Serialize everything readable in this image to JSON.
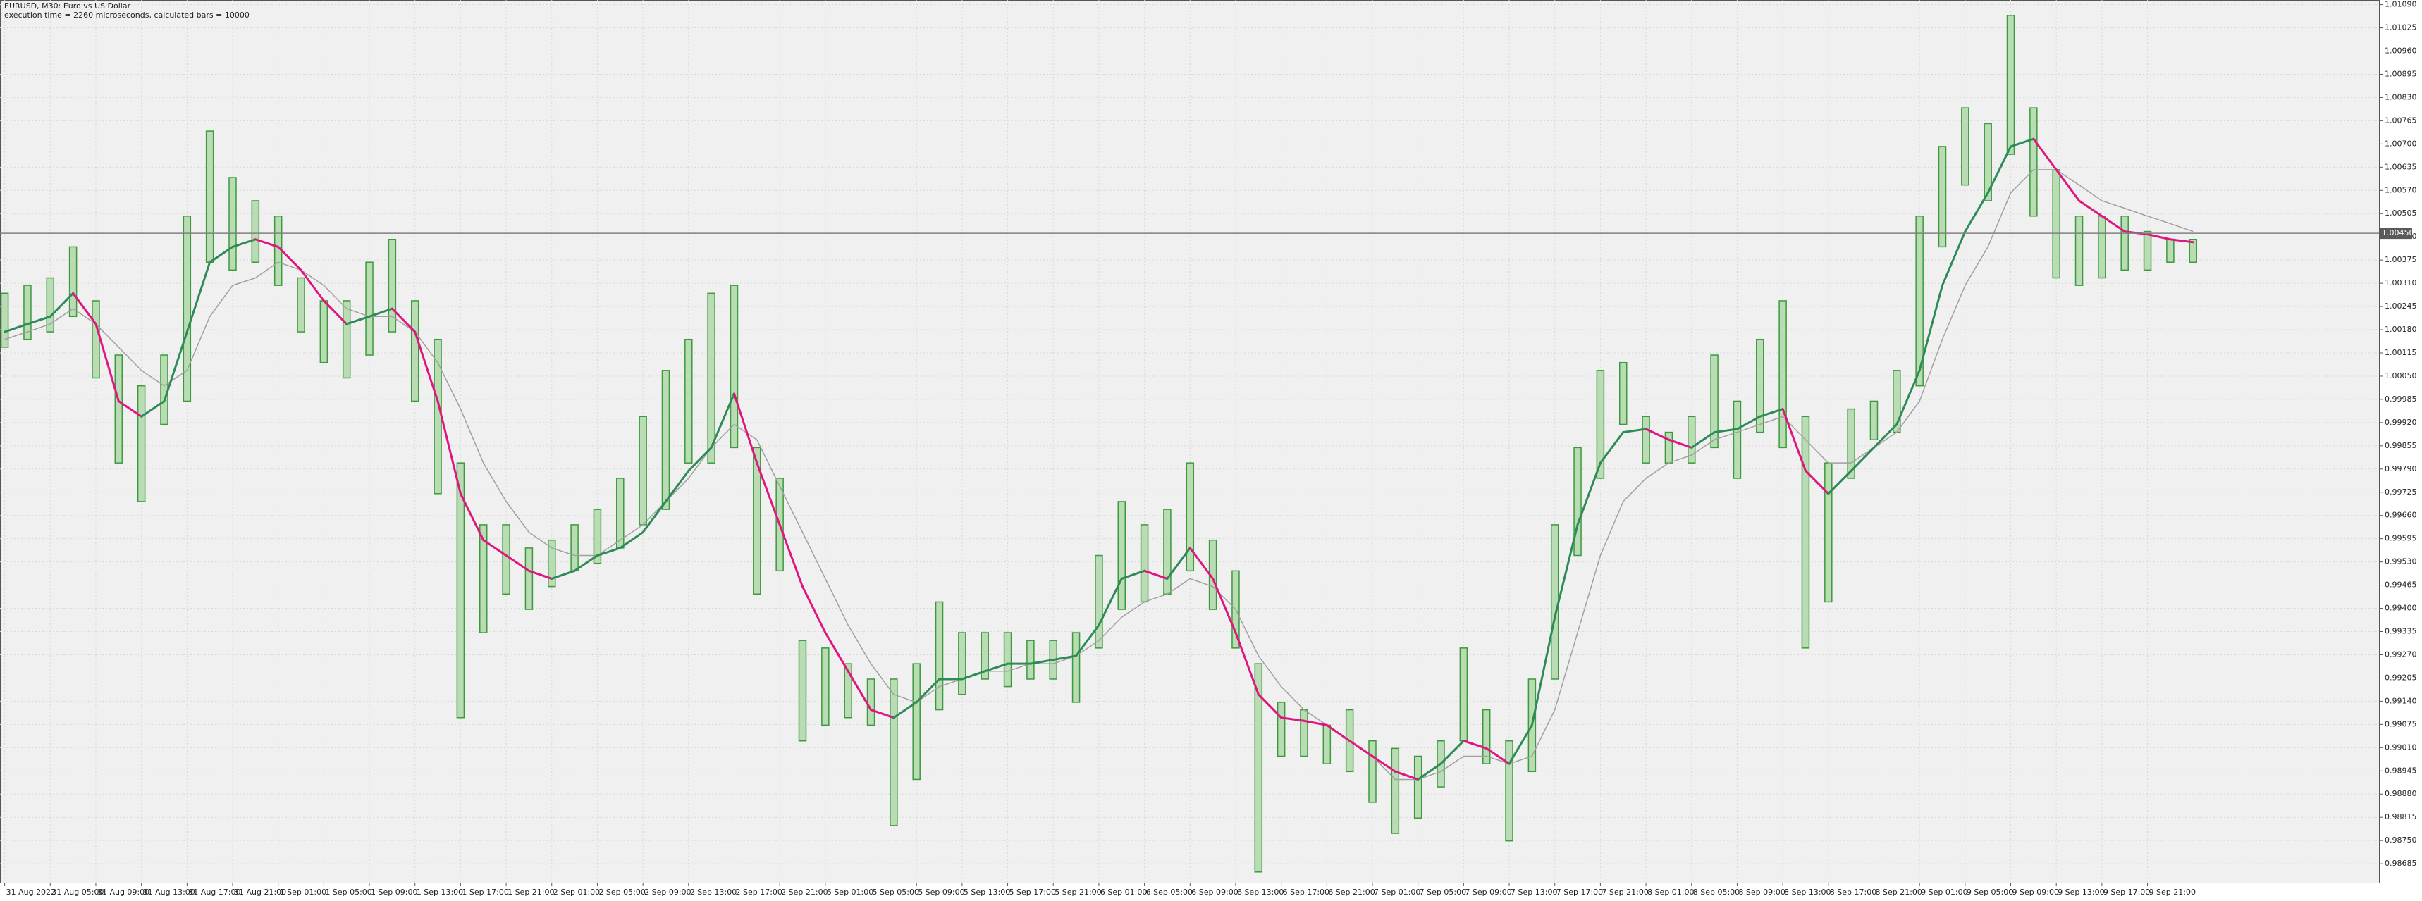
{
  "chart_data": {
    "type": "ohlc",
    "title": "EURUSD, M30:  Euro vs US Dollar",
    "subtitle": "execution time = 2260 microseconds, calculated bars = 10000",
    "categories": [
      "31 Aug 2022",
      null,
      "31 Aug 05:00",
      null,
      "31 Aug 09:00",
      null,
      "31 Aug 13:00",
      null,
      "31 Aug 17:00",
      null,
      "31 Aug 21:00",
      null,
      "1 Sep 01:00",
      null,
      "1 Sep 05:00",
      null,
      "1 Sep 09:00",
      null,
      "1 Sep 13:00",
      null,
      "1 Sep 17:00",
      null,
      "1 Sep 21:00",
      null,
      "2 Sep 01:00",
      null,
      "2 Sep 05:00",
      null,
      "2 Sep 09:00",
      null,
      "2 Sep 13:00",
      null,
      "2 Sep 17:00",
      null,
      "2 Sep 21:00",
      null,
      "5 Sep 01:00",
      null,
      "5 Sep 05:00",
      null,
      "5 Sep 09:00",
      null,
      "5 Sep 13:00",
      null,
      "5 Sep 17:00",
      null,
      "5 Sep 21:00",
      null,
      "6 Sep 01:00",
      null,
      "6 Sep 05:00",
      null,
      "6 Sep 09:00",
      null,
      "6 Sep 13:00",
      null,
      "6 Sep 17:00",
      null,
      "6 Sep 21:00",
      null,
      "7 Sep 01:00",
      null,
      "7 Sep 05:00",
      null,
      "7 Sep 09:00",
      null,
      "7 Sep 13:00",
      null,
      "7 Sep 17:00",
      null,
      "7 Sep 21:00",
      null,
      "8 Sep 01:00",
      null,
      "8 Sep 05:00",
      null,
      "8 Sep 09:00",
      null,
      "8 Sep 13:00",
      null,
      "8 Sep 17:00",
      null,
      "8 Sep 21:00",
      null,
      "9 Sep 01:00",
      null,
      "9 Sep 05:00",
      null,
      "9 Sep 09:00",
      null,
      "9 Sep 13:00",
      null,
      "9 Sep 17:00",
      null,
      "9 Sep 21:00",
      null,
      null
    ],
    "high": [
      1.00282,
      1.00304,
      1.00325,
      1.00412,
      1.00261,
      1.00109,
      1.00023,
      1.00109,
      1.00498,
      1.00736,
      1.00606,
      1.00541,
      1.00498,
      1.00325,
      1.00261,
      1.00261,
      1.00369,
      1.00433,
      1.00261,
      1.00153,
      0.99807,
      0.99634,
      0.99634,
      0.99569,
      0.99591,
      0.99634,
      0.99677,
      0.99764,
      0.99937,
      1.00066,
      1.00153,
      1.00282,
      1.00304,
      0.9985,
      0.99764,
      0.9931,
      0.99289,
      0.99245,
      0.99202,
      0.99202,
      0.99245,
      0.99418,
      0.99332,
      0.99332,
      0.99332,
      0.9931,
      0.9931,
      0.99332,
      0.99548,
      0.99699,
      0.99634,
      0.99677,
      0.99807,
      0.99591,
      0.99505,
      0.99245,
      0.99137,
      0.99116,
      0.99073,
      0.99116,
      0.99029,
      0.99008,
      0.98986,
      0.99029,
      0.99289,
      0.99116,
      0.99029,
      0.99202,
      0.99634,
      0.9985,
      1.00066,
      1.00088,
      0.99937,
      0.99893,
      0.99937,
      1.00109,
      0.9998,
      1.00153,
      1.00261,
      0.99937,
      0.99807,
      0.99958,
      0.9998,
      1.00066,
      1.00498,
      1.00693,
      1.00801,
      1.00757,
      1.0106,
      1.00801,
      1.00628,
      1.00498,
      1.00498,
      1.00498,
      1.00455,
      1.00433,
      1.00433
    ],
    "low": [
      1.00131,
      1.00153,
      1.00174,
      1.00217,
      1.00045,
      0.99807,
      0.99699,
      0.99915,
      0.9998,
      1.00369,
      1.00347,
      1.00369,
      1.00304,
      1.00174,
      1.00088,
      1.00045,
      1.00109,
      1.00174,
      0.9998,
      0.99721,
      0.99094,
      0.99332,
      0.9944,
      0.99397,
      0.99461,
      0.99505,
      0.99526,
      0.99569,
      0.99634,
      0.99677,
      0.99807,
      0.99807,
      0.9985,
      0.9944,
      0.99505,
      0.99029,
      0.99073,
      0.99094,
      0.99073,
      0.98792,
      0.98921,
      0.99116,
      0.99159,
      0.99202,
      0.99181,
      0.99202,
      0.99202,
      0.99137,
      0.99289,
      0.99397,
      0.99418,
      0.9944,
      0.99505,
      0.99397,
      0.99289,
      0.98662,
      0.98986,
      0.98986,
      0.98965,
      0.98943,
      0.98857,
      0.9877,
      0.98813,
      0.989,
      0.99029,
      0.98965,
      0.98749,
      0.98943,
      0.99202,
      0.99548,
      0.99764,
      0.99915,
      0.99807,
      0.99807,
      0.99807,
      0.9985,
      0.99764,
      0.99893,
      0.9985,
      0.99289,
      0.99418,
      0.99764,
      0.99872,
      0.99893,
      1.00023,
      1.00412,
      1.00585,
      1.00541,
      1.00671,
      1.00498,
      1.00325,
      1.00304,
      1.00325,
      1.00347,
      1.00347,
      1.00369,
      1.00369
    ],
    "bar_color": "#3c9a3c",
    "fast_line": {
      "color_up": "#2e8b57",
      "color_down": "#e0157f",
      "values": [
        1.00174,
        1.00196,
        1.00217,
        1.00282,
        1.00196,
        0.9998,
        0.99937,
        0.9998,
        1.00174,
        1.00369,
        1.00412,
        1.00433,
        1.00412,
        1.00347,
        1.00261,
        1.00196,
        1.00217,
        1.00239,
        1.00174,
        0.9998,
        0.99721,
        0.99591,
        0.99548,
        0.99505,
        0.99483,
        0.99505,
        0.99548,
        0.99569,
        0.99613,
        0.99699,
        0.99785,
        0.9985,
        1.00001,
        0.99807,
        0.99634,
        0.99461,
        0.99332,
        0.99224,
        0.99116,
        0.99094,
        0.99137,
        0.99202,
        0.99202,
        0.99224,
        0.99245,
        0.99245,
        0.99256,
        0.99267,
        0.99353,
        0.99483,
        0.99505,
        0.99483,
        0.99569,
        0.99483,
        0.99332,
        0.99159,
        0.99094,
        0.99085,
        0.99073,
        0.99029,
        0.98986,
        0.98943,
        0.98921,
        0.98965,
        0.99029,
        0.99008,
        0.98965,
        0.99073,
        0.99375,
        0.99634,
        0.99807,
        0.99893,
        0.99902,
        0.99872,
        0.9985,
        0.99893,
        0.99902,
        0.99937,
        0.99958,
        0.99785,
        0.99721,
        0.99785,
        0.9985,
        0.99915,
        1.00066,
        1.00304,
        1.00455,
        1.00563,
        1.00693,
        1.00714,
        1.00628,
        1.00541,
        1.00498,
        1.00455,
        1.00447,
        1.00433,
        1.00425
      ]
    },
    "slow_line": {
      "color": "#a0a0a0",
      "values": [
        1.00153,
        1.00174,
        1.00196,
        1.00239,
        1.00196,
        1.00131,
        1.00066,
        1.00023,
        1.00066,
        1.00217,
        1.00304,
        1.00325,
        1.00369,
        1.00347,
        1.00304,
        1.00239,
        1.00217,
        1.00217,
        1.00174,
        1.00088,
        0.99958,
        0.99807,
        0.99699,
        0.99613,
        0.99569,
        0.99548,
        0.99548,
        0.99591,
        0.99634,
        0.99699,
        0.99764,
        0.9985,
        0.99915,
        0.99872,
        0.99742,
        0.99613,
        0.99483,
        0.99353,
        0.99245,
        0.99159,
        0.99137,
        0.99181,
        0.99202,
        0.99224,
        0.99224,
        0.99245,
        0.99245,
        0.99267,
        0.9931,
        0.99375,
        0.99418,
        0.9944,
        0.99483,
        0.99461,
        0.99397,
        0.99267,
        0.99181,
        0.99116,
        0.99073,
        0.99029,
        0.98986,
        0.98921,
        0.98921,
        0.98943,
        0.98986,
        0.98986,
        0.98965,
        0.98986,
        0.99116,
        0.99332,
        0.99548,
        0.99699,
        0.99764,
        0.99807,
        0.99829,
        0.99872,
        0.99893,
        0.99915,
        0.99937,
        0.99872,
        0.99807,
        0.99807,
        0.9985,
        0.99893,
        0.9998,
        1.00153,
        1.00304,
        1.00412,
        1.00563,
        1.00628,
        1.00628,
        1.00585,
        1.00541,
        1.0052,
        1.00498,
        1.00477,
        1.00455
      ]
    },
    "last_price": {
      "value": 1.0045,
      "label": "1.00450"
    },
    "ylim": [
      0.98632,
      1.01103
    ],
    "yticks": [
      {
        "value": 1.0109,
        "label": "1.01090"
      },
      1.01025,
      {
        "value": 1.0096,
        "label": "1.00960"
      },
      1.00895,
      {
        "value": 1.0083,
        "label": "1.00830"
      },
      1.00765,
      {
        "value": 1.007,
        "label": "1.00700"
      },
      1.00635,
      {
        "value": 1.0057,
        "label": "1.00570"
      },
      1.00505,
      {
        "value": 1.0044,
        "label": "1.00440"
      },
      1.00375,
      {
        "value": 1.0031,
        "label": "1.00310"
      },
      1.00245,
      {
        "value": 1.0018,
        "label": "1.00180"
      },
      1.00115,
      {
        "value": 1.0005,
        "label": "1.00050"
      },
      0.99985,
      {
        "value": 0.9992,
        "label": "0.99920"
      },
      0.99855,
      {
        "value": 0.9979,
        "label": "0.99790"
      },
      0.99725,
      {
        "value": 0.9966,
        "label": "0.99660"
      },
      0.99595,
      {
        "value": 0.9953,
        "label": "0.99530"
      },
      0.99465,
      {
        "value": 0.994,
        "label": "0.99400"
      },
      0.99335,
      {
        "value": 0.9927,
        "label": "0.99270"
      },
      0.99205,
      {
        "value": 0.9914,
        "label": "0.99140"
      },
      0.99075,
      {
        "value": 0.9901,
        "label": "0.99010"
      },
      0.98945,
      {
        "value": 0.9888,
        "label": "0.98880"
      },
      0.98815,
      {
        "value": 0.9875,
        "label": "0.98750"
      },
      0.98685
    ],
    "grid": true
  }
}
